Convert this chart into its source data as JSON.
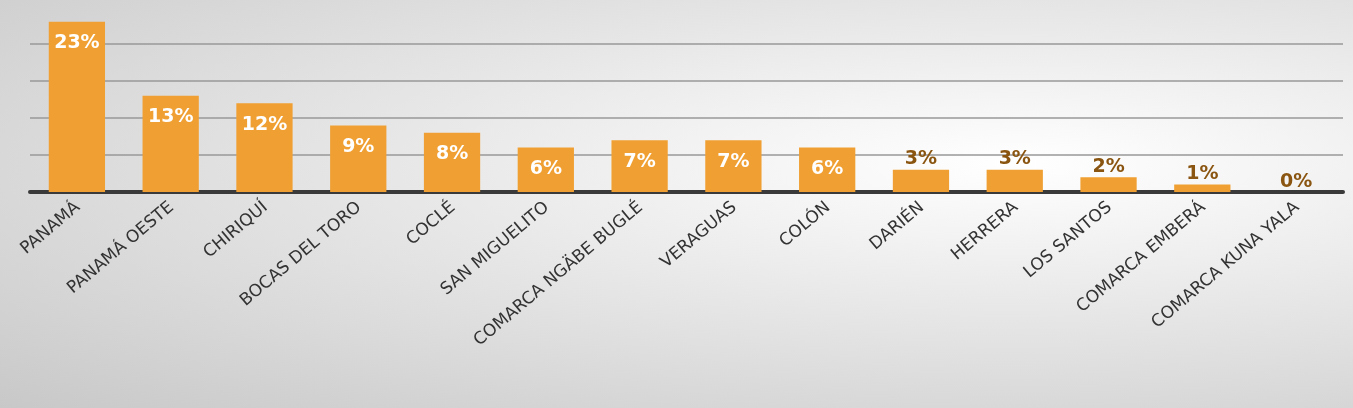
{
  "chart_data": {
    "type": "bar",
    "categories": [
      "PANAMÁ",
      "PANAMÁ OESTE",
      "CHIRIQUÍ",
      "BOCAS DEL TORO",
      "COCLÉ",
      "SAN MIGUELITO",
      "COMARCA NGÄBE BUGLÉ",
      "VERAGUAS",
      "COLÓN",
      "DARIÉN",
      "HERRERA",
      "LOS SANTOS",
      "COMARCA EMBERÁ",
      "COMARCA KUNA YALA"
    ],
    "values": [
      23,
      13,
      12,
      9,
      8,
      6,
      7,
      7,
      6,
      3,
      3,
      2,
      1,
      0
    ],
    "value_labels": [
      "23%",
      "13%",
      "12%",
      "9%",
      "8%",
      "6%",
      "7%",
      "7%",
      "6%",
      "3%",
      "3%",
      "2%",
      "1%",
      "0%"
    ],
    "color": "#f0a032",
    "yticks": [
      {
        "value": 0,
        "label": null
      },
      {
        "value": 5,
        "label": null
      },
      {
        "value": 10,
        "label": null
      },
      {
        "value": 15,
        "label": null
      },
      {
        "value": 20,
        "label": null
      }
    ],
    "grid": "y",
    "tick_labels": "x"
  }
}
